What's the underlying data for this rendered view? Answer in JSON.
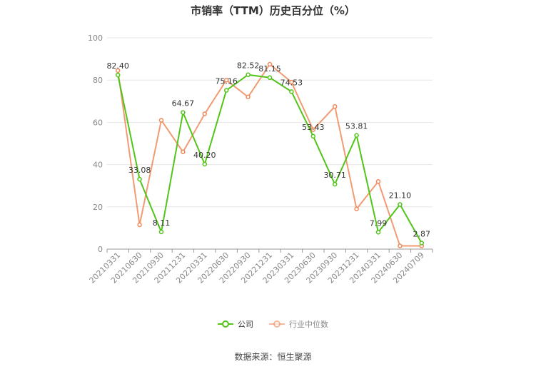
{
  "chart_data": {
    "type": "line",
    "title": "市销率（TTM）历史百分位（%）",
    "categories": [
      "20210331",
      "20210630",
      "20210930",
      "20211231",
      "20220331",
      "20220630",
      "20220930",
      "20221231",
      "20230331",
      "20230630",
      "20230930",
      "20231231",
      "20240331",
      "20240630",
      "20240709"
    ],
    "series": [
      {
        "name": "公司",
        "color": "#52c41a",
        "values": [
          82.4,
          33.08,
          8.11,
          64.67,
          40.2,
          75.16,
          82.52,
          81.15,
          74.53,
          53.43,
          30.71,
          53.81,
          7.99,
          21.1,
          2.87
        ],
        "labels": [
          "82.40",
          "33.08",
          "8.11",
          "64.67",
          "40.20",
          "75.16",
          "82.52",
          "81.15",
          "74.53",
          "53.43",
          "30.71",
          "53.81",
          "7.99",
          "21.10",
          "2.87"
        ]
      },
      {
        "name": "行业中位数",
        "color": "#f0895a",
        "values": [
          84.5,
          11.5,
          61.0,
          46.0,
          64.0,
          80.0,
          72.0,
          87.5,
          79.0,
          56.5,
          67.5,
          19.0,
          32.0,
          1.5,
          1.5
        ]
      }
    ],
    "ylim": [
      0,
      100
    ],
    "yticks": [
      0,
      20,
      40,
      60,
      80,
      100
    ],
    "grid": true,
    "legend_position": "bottom"
  },
  "source": "数据来源：恒生聚源"
}
